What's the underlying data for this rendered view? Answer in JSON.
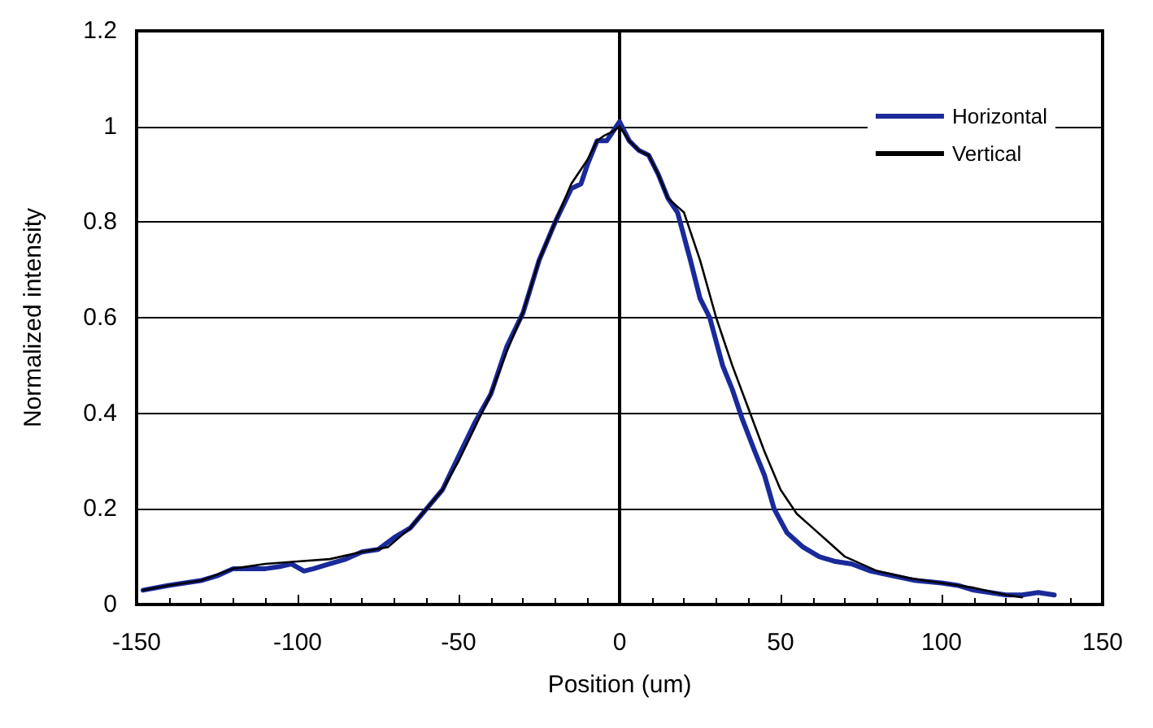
{
  "chart_data": {
    "type": "line",
    "xlabel": "Position (um)",
    "ylabel": "Normalized intensity",
    "xlim": [
      -150,
      150
    ],
    "xticks": [
      -150,
      -100,
      -50,
      0,
      50,
      100,
      150
    ],
    "ylim": [
      0,
      1.2
    ],
    "yticks": [
      0,
      0.2,
      0.4,
      0.6,
      0.8,
      1,
      1.2
    ],
    "grid": "y",
    "legend": "top right",
    "marker": "none",
    "line_style": "solid",
    "series": [
      {
        "name": "Horizontal",
        "color": "#1a2a9a",
        "x": [
          -148,
          -140,
          -130,
          -125,
          -120,
          -115,
          -110,
          -105,
          -102,
          -98,
          -95,
          -90,
          -85,
          -80,
          -75,
          -70,
          -65,
          -60,
          -55,
          -50,
          -45,
          -40,
          -35,
          -30,
          -25,
          -20,
          -15,
          -12,
          -10,
          -7,
          -4,
          -2,
          0,
          3,
          6,
          9,
          12,
          15,
          18,
          22,
          25,
          28,
          32,
          35,
          38,
          42,
          45,
          48,
          52,
          57,
          62,
          67,
          72,
          78,
          85,
          92,
          100,
          105,
          110,
          115,
          120,
          125,
          130,
          135
        ],
        "values": [
          0.03,
          0.04,
          0.05,
          0.06,
          0.075,
          0.075,
          0.075,
          0.08,
          0.085,
          0.07,
          0.075,
          0.085,
          0.095,
          0.11,
          0.115,
          0.14,
          0.16,
          0.2,
          0.24,
          0.31,
          0.38,
          0.44,
          0.54,
          0.61,
          0.72,
          0.8,
          0.87,
          0.88,
          0.92,
          0.97,
          0.97,
          0.99,
          1.01,
          0.97,
          0.95,
          0.94,
          0.9,
          0.85,
          0.82,
          0.72,
          0.64,
          0.6,
          0.5,
          0.45,
          0.39,
          0.32,
          0.27,
          0.2,
          0.15,
          0.12,
          0.1,
          0.09,
          0.085,
          0.07,
          0.06,
          0.05,
          0.045,
          0.04,
          0.03,
          0.025,
          0.02,
          0.02,
          0.025,
          0.02
        ]
      },
      {
        "name": "Vertical",
        "color": "#000000",
        "x": [
          -148,
          -140,
          -130,
          -120,
          -110,
          -100,
          -90,
          -80,
          -72,
          -65,
          -60,
          -55,
          -50,
          -45,
          -40,
          -35,
          -30,
          -25,
          -20,
          -15,
          -10,
          -7,
          -5,
          -2,
          0,
          3,
          6,
          9,
          12,
          15,
          20,
          25,
          30,
          35,
          40,
          45,
          50,
          55,
          60,
          65,
          70,
          80,
          90,
          100,
          110,
          120,
          125
        ],
        "values": [
          0.03,
          0.04,
          0.05,
          0.075,
          0.085,
          0.09,
          0.095,
          0.11,
          0.12,
          0.16,
          0.2,
          0.24,
          0.3,
          0.37,
          0.44,
          0.53,
          0.61,
          0.72,
          0.8,
          0.88,
          0.93,
          0.97,
          0.98,
          0.99,
          1.0,
          0.97,
          0.95,
          0.94,
          0.9,
          0.85,
          0.82,
          0.72,
          0.6,
          0.5,
          0.41,
          0.32,
          0.24,
          0.19,
          0.16,
          0.13,
          0.1,
          0.07,
          0.055,
          0.045,
          0.035,
          0.02,
          0.015
        ]
      }
    ]
  }
}
